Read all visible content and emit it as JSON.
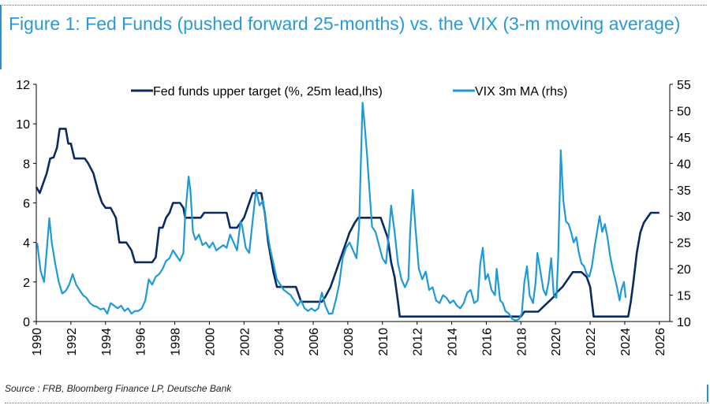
{
  "title": "Figure 1: Fed Funds (pushed forward 25-months) vs. the VIX (3-m moving average)",
  "source": "Source : FRB, Bloomberg Finance LP, Deutsche Bank",
  "colors": {
    "fed": "#0b2a5f",
    "vix": "#1f9ad6",
    "title": "#2a9ad6"
  },
  "chart_data": {
    "type": "line",
    "xlim": [
      1990,
      2026.6
    ],
    "x_ticks": [
      "1990",
      "1992",
      "1994",
      "1996",
      "1998",
      "2000",
      "2002",
      "2004",
      "2006",
      "2008",
      "2010",
      "2012",
      "2014",
      "2016",
      "2018",
      "2020",
      "2022",
      "2024",
      "2026"
    ],
    "y_left": {
      "lim": [
        0,
        12
      ],
      "ticks": [
        "0",
        "2",
        "4",
        "6",
        "8",
        "10",
        "12"
      ]
    },
    "y_right": {
      "lim": [
        10,
        55
      ],
      "ticks": [
        "10",
        "15",
        "20",
        "25",
        "30",
        "35",
        "40",
        "45",
        "50",
        "55"
      ]
    },
    "legend_position": "top",
    "series": [
      {
        "name": "Fed funds upper target (%, 25m lead,lhs)",
        "axis": "left",
        "points": [
          [
            1990.0,
            6.8
          ],
          [
            1990.2,
            6.5
          ],
          [
            1990.4,
            7.0
          ],
          [
            1990.6,
            7.5
          ],
          [
            1990.8,
            8.25
          ],
          [
            1991.0,
            8.3
          ],
          [
            1991.2,
            8.8
          ],
          [
            1991.35,
            9.75
          ],
          [
            1991.7,
            9.75
          ],
          [
            1991.85,
            9.0
          ],
          [
            1992.0,
            9.0
          ],
          [
            1992.2,
            8.25
          ],
          [
            1992.8,
            8.25
          ],
          [
            1993.0,
            8.0
          ],
          [
            1993.3,
            7.5
          ],
          [
            1993.6,
            6.5
          ],
          [
            1993.8,
            6.0
          ],
          [
            1994.0,
            5.75
          ],
          [
            1994.3,
            5.75
          ],
          [
            1994.6,
            5.25
          ],
          [
            1994.8,
            4.0
          ],
          [
            1995.2,
            4.0
          ],
          [
            1995.5,
            3.6
          ],
          [
            1995.7,
            3.0
          ],
          [
            1996.7,
            3.0
          ],
          [
            1996.9,
            3.25
          ],
          [
            1997.0,
            4.0
          ],
          [
            1997.1,
            4.75
          ],
          [
            1997.3,
            4.75
          ],
          [
            1997.5,
            5.25
          ],
          [
            1997.7,
            5.5
          ],
          [
            1997.9,
            6.0
          ],
          [
            1998.3,
            6.0
          ],
          [
            1998.5,
            5.75
          ],
          [
            1998.6,
            5.25
          ],
          [
            1999.3,
            5.25
          ],
          [
            1999.5,
            5.25
          ],
          [
            1999.7,
            5.5
          ],
          [
            2001.0,
            5.5
          ],
          [
            2001.2,
            4.75
          ],
          [
            2001.6,
            4.75
          ],
          [
            2001.8,
            5.0
          ],
          [
            2002.0,
            5.25
          ],
          [
            2002.3,
            6.0
          ],
          [
            2002.5,
            6.5
          ],
          [
            2003.0,
            6.5
          ],
          [
            2003.2,
            5.5
          ],
          [
            2003.4,
            4.0
          ],
          [
            2003.7,
            2.5
          ],
          [
            2003.9,
            1.75
          ],
          [
            2004.0,
            1.75
          ],
          [
            2005.0,
            1.75
          ],
          [
            2005.3,
            1.0
          ],
          [
            2006.5,
            1.0
          ],
          [
            2006.7,
            1.25
          ],
          [
            2007.0,
            1.75
          ],
          [
            2007.3,
            2.5
          ],
          [
            2007.6,
            3.25
          ],
          [
            2007.9,
            4.0
          ],
          [
            2008.1,
            4.5
          ],
          [
            2008.4,
            5.0
          ],
          [
            2008.6,
            5.25
          ],
          [
            2009.9,
            5.25
          ],
          [
            2010.1,
            4.75
          ],
          [
            2010.3,
            4.25
          ],
          [
            2010.5,
            3.0
          ],
          [
            2010.7,
            2.25
          ],
          [
            2010.9,
            1.0
          ],
          [
            2011.0,
            0.25
          ],
          [
            2018.0,
            0.25
          ],
          [
            2018.2,
            0.5
          ],
          [
            2019.0,
            0.5
          ],
          [
            2019.3,
            0.75
          ],
          [
            2019.6,
            1.0
          ],
          [
            2019.9,
            1.25
          ],
          [
            2020.1,
            1.5
          ],
          [
            2020.4,
            1.75
          ],
          [
            2020.6,
            2.0
          ],
          [
            2020.8,
            2.25
          ],
          [
            2021.0,
            2.5
          ],
          [
            2021.5,
            2.5
          ],
          [
            2021.8,
            2.25
          ],
          [
            2022.0,
            1.75
          ],
          [
            2022.2,
            0.25
          ],
          [
            2024.2,
            0.25
          ],
          [
            2024.35,
            1.0
          ],
          [
            2024.5,
            2.0
          ],
          [
            2024.7,
            3.5
          ],
          [
            2024.9,
            4.5
          ],
          [
            2025.1,
            5.0
          ],
          [
            2025.3,
            5.25
          ],
          [
            2025.5,
            5.5
          ],
          [
            2026.0,
            5.5
          ]
        ]
      },
      {
        "name": "VIX 3m MA (rhs)",
        "axis": "right",
        "points": [
          [
            1990.05,
            24.9
          ],
          [
            1990.25,
            19.6
          ],
          [
            1990.45,
            17.5
          ],
          [
            1990.6,
            23.4
          ],
          [
            1990.75,
            29.6
          ],
          [
            1990.9,
            24.9
          ],
          [
            1991.1,
            20.9
          ],
          [
            1991.3,
            17.5
          ],
          [
            1991.5,
            15.3
          ],
          [
            1991.7,
            15.8
          ],
          [
            1991.9,
            17.0
          ],
          [
            1992.1,
            19.0
          ],
          [
            1992.3,
            17.0
          ],
          [
            1992.5,
            16.0
          ],
          [
            1992.7,
            15.0
          ],
          [
            1992.9,
            14.5
          ],
          [
            1993.1,
            13.5
          ],
          [
            1993.3,
            13.0
          ],
          [
            1993.5,
            12.8
          ],
          [
            1993.7,
            12.3
          ],
          [
            1993.9,
            12.5
          ],
          [
            1994.1,
            11.5
          ],
          [
            1994.3,
            13.5
          ],
          [
            1994.5,
            13.0
          ],
          [
            1994.7,
            12.5
          ],
          [
            1994.9,
            13.0
          ],
          [
            1995.1,
            12.0
          ],
          [
            1995.3,
            12.5
          ],
          [
            1995.5,
            11.5
          ],
          [
            1995.7,
            12.0
          ],
          [
            1995.9,
            12.0
          ],
          [
            1996.1,
            12.5
          ],
          [
            1996.3,
            14.0
          ],
          [
            1996.5,
            18.0
          ],
          [
            1996.7,
            17.0
          ],
          [
            1996.9,
            18.5
          ],
          [
            1997.1,
            19.0
          ],
          [
            1997.3,
            20.0
          ],
          [
            1997.5,
            21.5
          ],
          [
            1997.7,
            22.0
          ],
          [
            1997.9,
            23.5
          ],
          [
            1998.1,
            22.5
          ],
          [
            1998.3,
            21.5
          ],
          [
            1998.5,
            23.0
          ],
          [
            1998.6,
            30.0
          ],
          [
            1998.8,
            37.5
          ],
          [
            1998.9,
            35.0
          ],
          [
            1999.05,
            27.0
          ],
          [
            1999.2,
            25.5
          ],
          [
            1999.4,
            26.5
          ],
          [
            1999.6,
            24.5
          ],
          [
            1999.8,
            25.0
          ],
          [
            2000.0,
            24.0
          ],
          [
            2000.2,
            25.0
          ],
          [
            2000.4,
            23.5
          ],
          [
            2000.6,
            24.0
          ],
          [
            2000.8,
            24.5
          ],
          [
            2001.0,
            24.0
          ],
          [
            2001.2,
            26.5
          ],
          [
            2001.4,
            25.0
          ],
          [
            2001.6,
            23.5
          ],
          [
            2001.8,
            29.0
          ],
          [
            2001.9,
            28.0
          ],
          [
            2002.1,
            24.0
          ],
          [
            2002.3,
            23.0
          ],
          [
            2002.5,
            29.0
          ],
          [
            2002.7,
            35.0
          ],
          [
            2002.9,
            32.0
          ],
          [
            2003.1,
            33.0
          ],
          [
            2003.3,
            28.0
          ],
          [
            2003.5,
            24.0
          ],
          [
            2003.7,
            21.0
          ],
          [
            2003.9,
            18.0
          ],
          [
            2004.1,
            17.0
          ],
          [
            2004.3,
            16.0
          ],
          [
            2004.5,
            15.5
          ],
          [
            2004.7,
            15.0
          ],
          [
            2004.9,
            14.0
          ],
          [
            2005.1,
            13.0
          ],
          [
            2005.3,
            14.0
          ],
          [
            2005.5,
            12.5
          ],
          [
            2005.7,
            12.0
          ],
          [
            2005.9,
            12.5
          ],
          [
            2006.1,
            12.0
          ],
          [
            2006.3,
            12.5
          ],
          [
            2006.5,
            15.5
          ],
          [
            2006.7,
            13.0
          ],
          [
            2006.9,
            11.5
          ],
          [
            2007.1,
            11.5
          ],
          [
            2007.3,
            14.0
          ],
          [
            2007.5,
            17.0
          ],
          [
            2007.7,
            22.0
          ],
          [
            2007.9,
            24.0
          ],
          [
            2008.1,
            25.0
          ],
          [
            2008.3,
            23.5
          ],
          [
            2008.5,
            22.0
          ],
          [
            2008.65,
            28.0
          ],
          [
            2008.75,
            40.0
          ],
          [
            2008.85,
            51.5
          ],
          [
            2008.95,
            48.0
          ],
          [
            2009.1,
            42.0
          ],
          [
            2009.25,
            35.0
          ],
          [
            2009.4,
            28.0
          ],
          [
            2009.6,
            27.0
          ],
          [
            2009.8,
            24.5
          ],
          [
            2010.0,
            22.0
          ],
          [
            2010.2,
            21.0
          ],
          [
            2010.35,
            26.0
          ],
          [
            2010.5,
            32.0
          ],
          [
            2010.7,
            27.0
          ],
          [
            2010.9,
            21.0
          ],
          [
            2011.1,
            18.0
          ],
          [
            2011.3,
            16.5
          ],
          [
            2011.5,
            18.0
          ],
          [
            2011.6,
            27.0
          ],
          [
            2011.75,
            35.0
          ],
          [
            2011.9,
            28.0
          ],
          [
            2012.1,
            20.0
          ],
          [
            2012.3,
            18.0
          ],
          [
            2012.5,
            19.5
          ],
          [
            2012.7,
            16.0
          ],
          [
            2012.9,
            16.5
          ],
          [
            2013.1,
            14.0
          ],
          [
            2013.3,
            13.5
          ],
          [
            2013.5,
            15.0
          ],
          [
            2013.7,
            14.5
          ],
          [
            2013.9,
            13.5
          ],
          [
            2014.1,
            14.0
          ],
          [
            2014.3,
            13.0
          ],
          [
            2014.5,
            12.5
          ],
          [
            2014.7,
            13.5
          ],
          [
            2014.9,
            15.5
          ],
          [
            2015.1,
            16.0
          ],
          [
            2015.3,
            13.5
          ],
          [
            2015.5,
            14.0
          ],
          [
            2015.65,
            21.0
          ],
          [
            2015.8,
            24.0
          ],
          [
            2015.95,
            18.0
          ],
          [
            2016.1,
            19.0
          ],
          [
            2016.3,
            16.0
          ],
          [
            2016.5,
            15.0
          ],
          [
            2016.6,
            20.0
          ],
          [
            2016.8,
            14.0
          ],
          [
            2016.95,
            13.5
          ],
          [
            2017.1,
            12.0
          ],
          [
            2017.3,
            11.5
          ],
          [
            2017.5,
            10.5
          ],
          [
            2017.7,
            10.2
          ],
          [
            2017.9,
            10.5
          ],
          [
            2018.05,
            11.5
          ],
          [
            2018.2,
            17.5
          ],
          [
            2018.35,
            20.5
          ],
          [
            2018.5,
            15.0
          ],
          [
            2018.7,
            13.5
          ],
          [
            2018.85,
            17.5
          ],
          [
            2018.95,
            23.0
          ],
          [
            2019.1,
            20.0
          ],
          [
            2019.3,
            16.0
          ],
          [
            2019.45,
            15.0
          ],
          [
            2019.6,
            17.5
          ],
          [
            2019.75,
            22.0
          ],
          [
            2019.9,
            15.0
          ],
          [
            2020.05,
            14.5
          ],
          [
            2020.15,
            22.0
          ],
          [
            2020.25,
            35.0
          ],
          [
            2020.3,
            42.5
          ],
          [
            2020.45,
            33.0
          ],
          [
            2020.6,
            29.0
          ],
          [
            2020.75,
            28.5
          ],
          [
            2020.9,
            27.0
          ],
          [
            2021.05,
            25.0
          ],
          [
            2021.2,
            26.0
          ],
          [
            2021.35,
            23.0
          ],
          [
            2021.5,
            21.0
          ],
          [
            2021.65,
            20.5
          ],
          [
            2021.8,
            19.0
          ],
          [
            2021.95,
            18.5
          ],
          [
            2022.1,
            20.5
          ],
          [
            2022.25,
            24.0
          ],
          [
            2022.45,
            28.0
          ],
          [
            2022.55,
            30.0
          ],
          [
            2022.7,
            27.0
          ],
          [
            2022.85,
            28.5
          ],
          [
            2023.0,
            26.0
          ],
          [
            2023.15,
            22.5
          ],
          [
            2023.3,
            20.0
          ],
          [
            2023.45,
            18.0
          ],
          [
            2023.55,
            16.5
          ],
          [
            2023.7,
            14.0
          ],
          [
            2023.8,
            16.0
          ],
          [
            2023.95,
            17.5
          ],
          [
            2024.05,
            14.5
          ]
        ]
      }
    ]
  }
}
